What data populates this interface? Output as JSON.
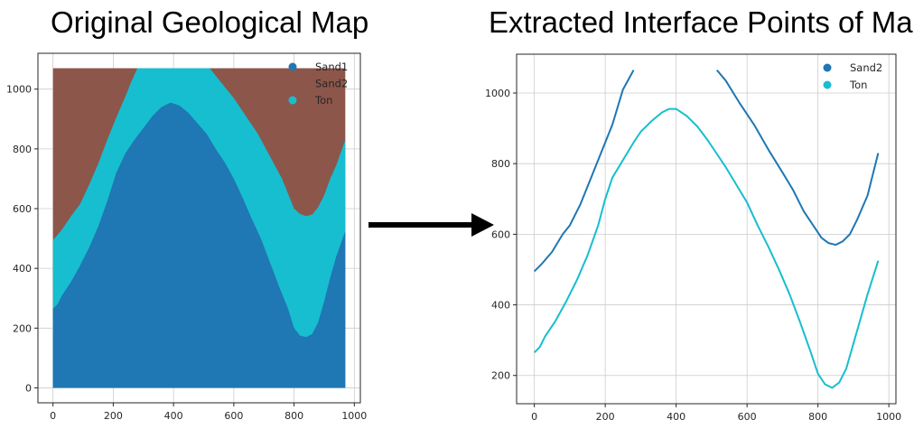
{
  "titles": {
    "left": "Original Geological Map",
    "right": "Extracted Interface Points of Map"
  },
  "colors": {
    "sand1": "#1f77b4",
    "sand2": "#8c564b",
    "ton": "#17becf",
    "grid": "#cccccc",
    "axes": "#262626",
    "arrow": "#000000"
  },
  "chart_data": [
    {
      "type": "area",
      "title": "Original Geological Map",
      "xlim": [
        -50,
        1020
      ],
      "ylim": [
        -50,
        1120
      ],
      "xticks": [
        0,
        200,
        400,
        600,
        800,
        1000
      ],
      "yticks": [
        0,
        200,
        400,
        600,
        800,
        1000
      ],
      "grid": true,
      "legend_position": "top-right",
      "legend": [
        {
          "label": "Sand1",
          "color": "#1f77b4"
        },
        {
          "label": "Sand2",
          "color": "#8c564b"
        },
        {
          "label": "Ton",
          "color": "#17becf"
        }
      ],
      "extent": {
        "x": [
          0,
          970
        ],
        "y": [
          0,
          1070
        ]
      },
      "sand2_surface": {
        "x": [
          0,
          30,
          60,
          90,
          120,
          150,
          180,
          210,
          240,
          260,
          280,
          300,
          330,
          360,
          390,
          420,
          450,
          480,
          500,
          520,
          560,
          600,
          640,
          680,
          720,
          760,
          780,
          800,
          820,
          840,
          860,
          880,
          900,
          920,
          940,
          970
        ],
        "y": [
          495,
          530,
          575,
          615,
          680,
          750,
          830,
          905,
          975,
          1025,
          1070,
          1070,
          1070,
          1070,
          1070,
          1070,
          1070,
          1070,
          1070,
          1070,
          1020,
          970,
          910,
          850,
          775,
          700,
          650,
          600,
          582,
          575,
          580,
          605,
          645,
          700,
          745,
          830
        ]
      },
      "ton_surface": {
        "x": [
          0,
          15,
          30,
          60,
          90,
          120,
          150,
          180,
          210,
          240,
          270,
          300,
          330,
          360,
          390,
          420,
          450,
          480,
          510,
          540,
          570,
          600,
          630,
          660,
          690,
          720,
          750,
          780,
          800,
          820,
          840,
          860,
          880,
          900,
          920,
          940,
          970
        ],
        "y": [
          265,
          280,
          310,
          355,
          410,
          470,
          540,
          625,
          720,
          785,
          830,
          870,
          910,
          940,
          955,
          945,
          920,
          885,
          850,
          800,
          755,
          700,
          635,
          565,
          500,
          420,
          340,
          265,
          200,
          175,
          170,
          180,
          220,
          290,
          370,
          440,
          525
        ]
      }
    },
    {
      "type": "line",
      "title": "Extracted Interface Points of Map",
      "xlim": [
        -50,
        1020
      ],
      "ylim": [
        120,
        1110
      ],
      "xticks": [
        0,
        200,
        400,
        600,
        800,
        1000
      ],
      "yticks": [
        200,
        400,
        600,
        800,
        1000
      ],
      "grid": true,
      "legend_position": "top-right",
      "series": [
        {
          "name": "Sand2",
          "color": "#1f77b4",
          "segments": [
            {
              "x": [
                0,
                20,
                50,
                80,
                100,
                130,
                160,
                190,
                220,
                250,
                280
              ],
              "y": [
                495,
                515,
                550,
                600,
                625,
                685,
                760,
                835,
                910,
                1010,
                1065
              ]
            },
            {
              "x": [
                515,
                540,
                580,
                620,
                660,
                700,
                730,
                760,
                790,
                810,
                830,
                850,
                870,
                890,
                910,
                940,
                970
              ],
              "y": [
                1065,
                1035,
                970,
                910,
                840,
                775,
                725,
                665,
                620,
                590,
                575,
                570,
                580,
                600,
                640,
                710,
                830
              ]
            }
          ]
        },
        {
          "name": "Ton",
          "color": "#17becf",
          "segments": [
            {
              "x": [
                0,
                15,
                30,
                60,
                90,
                120,
                150,
                180,
                200,
                220,
                250,
                280,
                300,
                330,
                360,
                380,
                400,
                430,
                460,
                490,
                510,
                540,
                570,
                600,
                630,
                660,
                690,
                720,
                750,
                780,
                800,
                820,
                840,
                860,
                880,
                900,
                920,
                940,
                970
              ],
              "y": [
                265,
                280,
                310,
                355,
                410,
                470,
                540,
                625,
                700,
                760,
                810,
                860,
                890,
                920,
                945,
                955,
                955,
                935,
                905,
                865,
                835,
                790,
                740,
                690,
                625,
                565,
                500,
                430,
                350,
                265,
                205,
                175,
                165,
                180,
                220,
                290,
                360,
                430,
                525
              ]
            }
          ]
        }
      ]
    }
  ]
}
